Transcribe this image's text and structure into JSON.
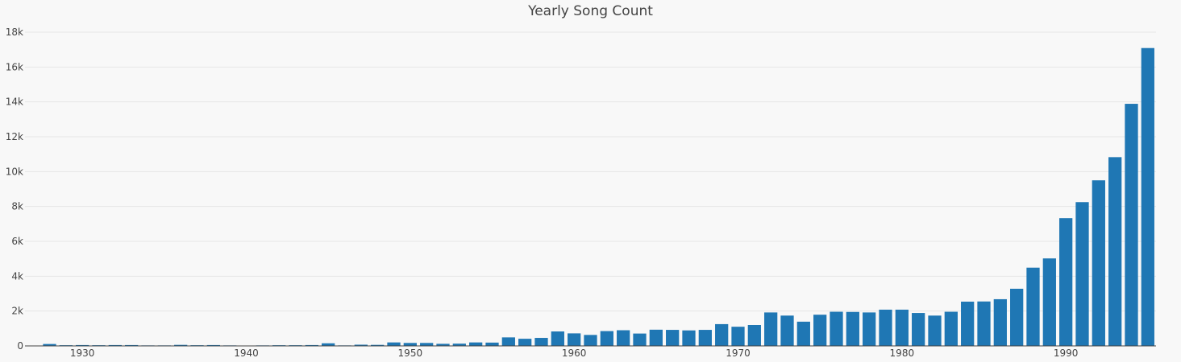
{
  "chart_data": {
    "type": "bar",
    "title": "Yearly Song Count",
    "xlabel": "",
    "ylabel": "",
    "x": [
      1927,
      1928,
      1929,
      1930,
      1931,
      1932,
      1933,
      1934,
      1935,
      1936,
      1937,
      1938,
      1939,
      1940,
      1941,
      1942,
      1943,
      1944,
      1945,
      1946,
      1947,
      1948,
      1949,
      1950,
      1951,
      1952,
      1953,
      1954,
      1955,
      1956,
      1957,
      1958,
      1959,
      1960,
      1961,
      1962,
      1963,
      1964,
      1965,
      1966,
      1967,
      1968,
      1969,
      1970,
      1971,
      1972,
      1973,
      1974,
      1975,
      1976,
      1977,
      1978,
      1979,
      1980,
      1981,
      1982,
      1983,
      1984,
      1985,
      1986,
      1987,
      1988,
      1989,
      1990,
      1991,
      1992,
      1993,
      1994,
      1995
    ],
    "values": [
      20,
      110,
      40,
      50,
      40,
      50,
      50,
      30,
      30,
      60,
      40,
      50,
      30,
      20,
      30,
      40,
      40,
      50,
      150,
      30,
      70,
      60,
      200,
      170,
      170,
      120,
      130,
      200,
      190,
      490,
      410,
      460,
      830,
      720,
      630,
      850,
      900,
      710,
      930,
      920,
      890,
      920,
      1250,
      1100,
      1200,
      1920,
      1740,
      1390,
      1790,
      1960,
      1950,
      1920,
      2080,
      2080,
      1890,
      1740,
      1960,
      2540,
      2550,
      2680,
      3280,
      4490,
      5020,
      7330,
      8250,
      9500,
      10830,
      13890,
      17090
    ],
    "ylim": [
      0,
      18000
    ],
    "yticks": [
      0,
      2000,
      4000,
      6000,
      8000,
      10000,
      12000,
      14000,
      16000,
      18000
    ],
    "ytick_labels": [
      "0",
      "2k",
      "4k",
      "6k",
      "8k",
      "10k",
      "12k",
      "14k",
      "16k",
      "18k"
    ],
    "xticks": [
      1930,
      1940,
      1950,
      1960,
      1970,
      1980,
      1990
    ],
    "xtick_labels": [
      "1930",
      "1940",
      "1950",
      "1960",
      "1970",
      "1980",
      "1990"
    ],
    "xlim": [
      1926.5,
      1995.5
    ],
    "grid": true,
    "bar_color": "#1f77b4"
  }
}
